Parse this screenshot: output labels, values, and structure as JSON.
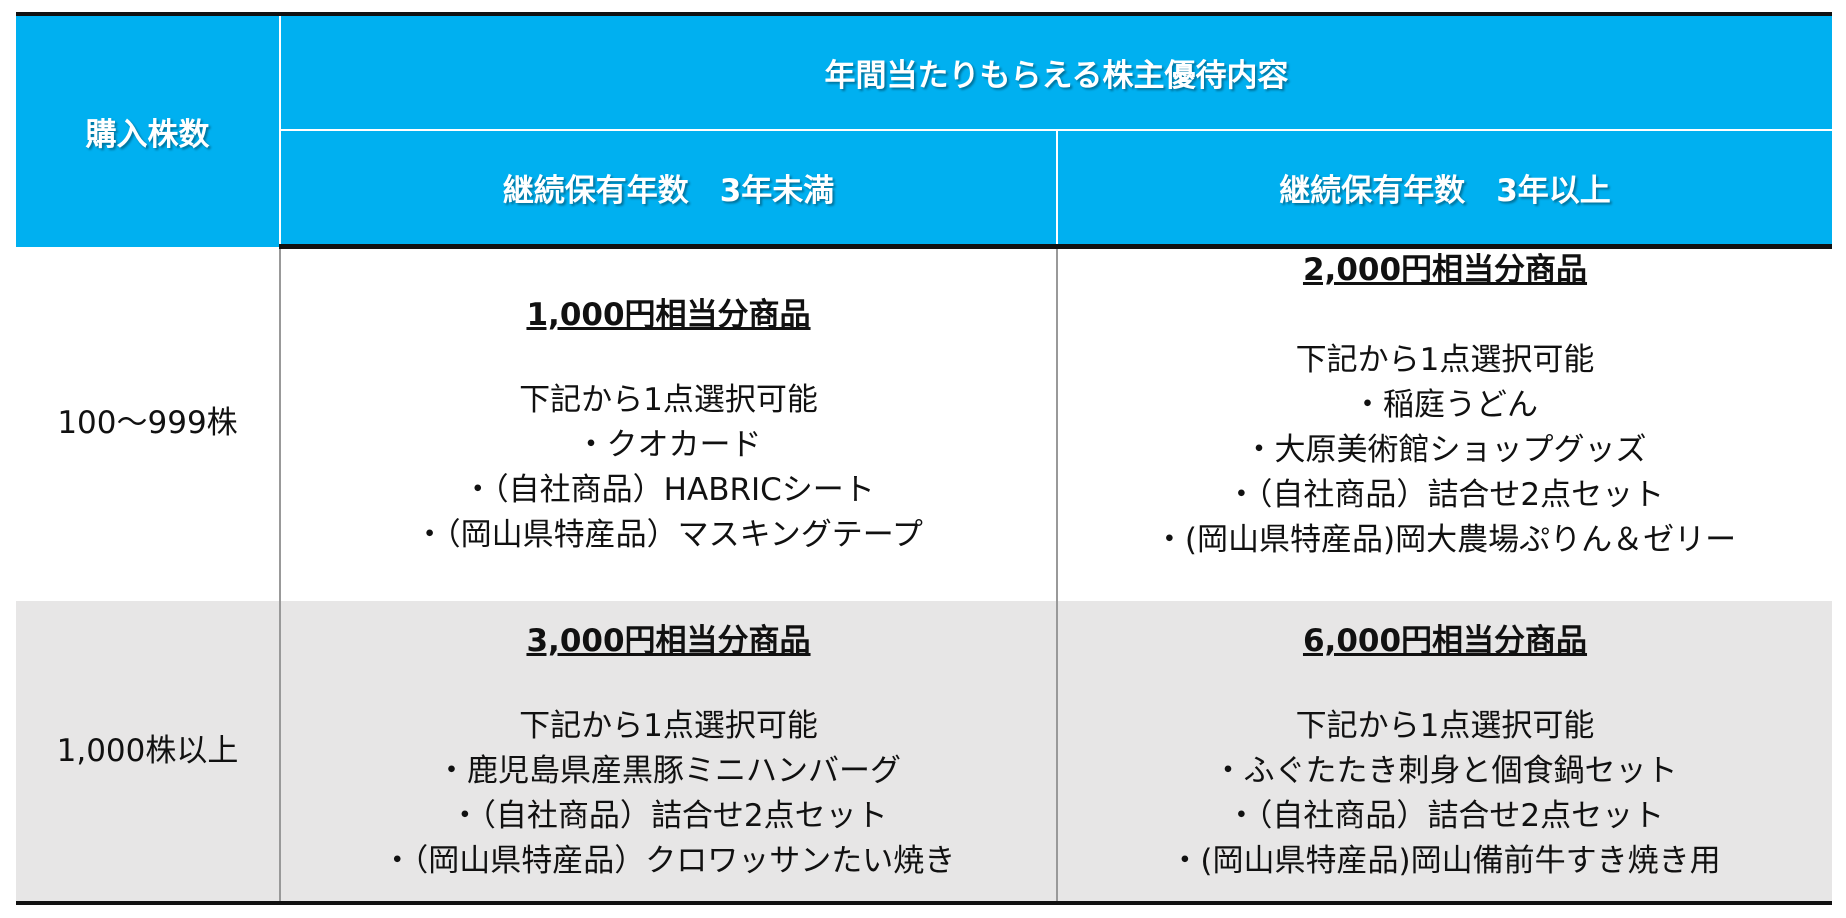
{
  "header": {
    "shares_label": "購入株数",
    "benefits_label": "年間当たりもらえる株主優待内容",
    "under3": "継続保有年数　3年未満",
    "over3": "継続保有年数　3年以上"
  },
  "rows": [
    {
      "shares": "100～999株",
      "under3": {
        "title": "1,000円相当分商品",
        "lines": [
          "下記から1点選択可能",
          "・クオカード",
          "・（自社商品）HABRICシート",
          "・（岡山県特産品）マスキングテープ"
        ]
      },
      "over3": {
        "title": "2,000円相当分商品",
        "lines": [
          "下記から1点選択可能",
          "・稲庭うどん",
          "・大原美術館ショップグッズ",
          "・（自社商品）詰合せ2点セット",
          "・(岡山県特産品)岡大農場ぷりん＆ゼリー"
        ]
      }
    },
    {
      "shares": "1,000株以上",
      "under3": {
        "title": "3,000円相当分商品",
        "lines": [
          "下記から1点選択可能",
          "・鹿児島県産黒豚ミニハンバーグ",
          "・（自社商品）詰合せ2点セット",
          "・（岡山県特産品）クロワッサンたい焼き"
        ]
      },
      "over3": {
        "title": "6,000円相当分商品",
        "lines": [
          "下記から1点選択可能",
          "・ふぐたたき刺身と個食鍋セット",
          "・（自社商品）詰合せ2点セット",
          "・(岡山県特産品)岡山備前牛すき焼き用"
        ]
      }
    }
  ],
  "colors": {
    "header_bg": "#00B0F0",
    "row2_bg": "#E7E6E6"
  }
}
